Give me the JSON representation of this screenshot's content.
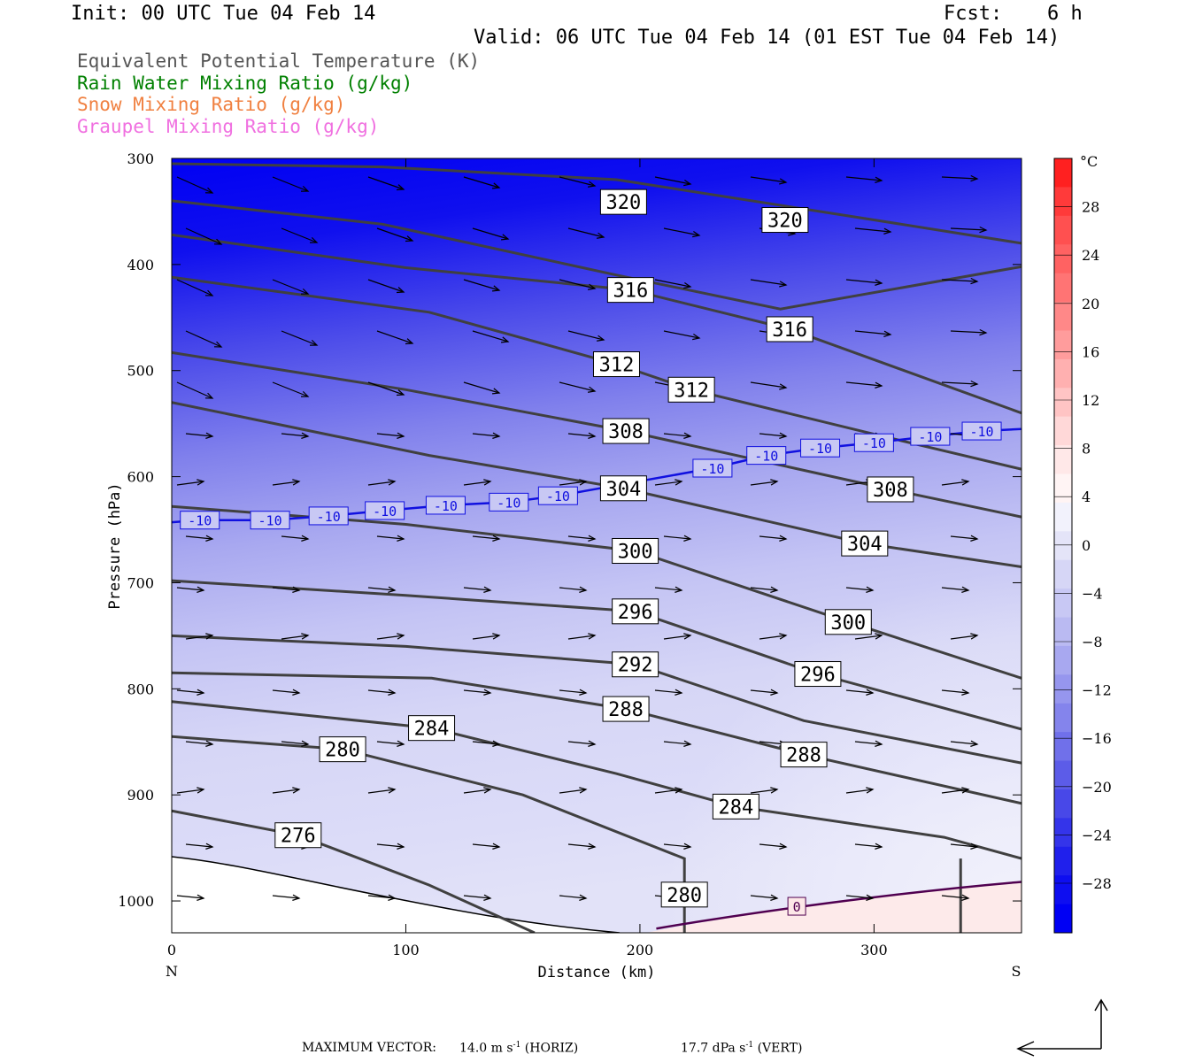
{
  "header": {
    "init": "Init: 00 UTC Tue 04 Feb 14",
    "fcst_label": "Fcst:",
    "fcst_value": "6 h",
    "valid": "Valid: 06 UTC Tue 04 Feb 14 (01 EST Tue 04 Feb 14)"
  },
  "legend": [
    {
      "label": "Equivalent Potential Temperature (K)",
      "color": "#555555"
    },
    {
      "label": "Rain Water Mixing Ratio (g/kg)",
      "color": "#008000"
    },
    {
      "label": "Snow Mixing Ratio (g/kg)",
      "color": "#f08040"
    },
    {
      "label": "Graupel Mixing Ratio (g/kg)",
      "color": "#f070e0"
    }
  ],
  "footer": {
    "max_vector_label": "MAXIMUM VECTOR:",
    "horiz": "14.0 m s",
    "horiz_tag": "(HORIZ)",
    "vert": "17.7 dPa s",
    "vert_tag": "(VERT)",
    "exp": "-1"
  },
  "chart_data": {
    "type": "contour-cross-section",
    "xlabel": "Distance (km)",
    "ylabel": "Pressure (hPa)",
    "xlim": [
      0,
      363
    ],
    "ylim": [
      1030,
      300
    ],
    "x_ticks": [
      0,
      100,
      200,
      300
    ],
    "y_ticks": [
      300,
      400,
      500,
      600,
      700,
      800,
      900,
      1000
    ],
    "x_end_labels": {
      "left": "N",
      "right": "S"
    },
    "colorbar": {
      "unit": "°C",
      "labels": [
        28,
        24,
        20,
        16,
        12,
        8,
        4,
        0,
        -4,
        -8,
        -12,
        -16,
        -20,
        -24,
        -28
      ],
      "colors_warm": [
        "#ff2020",
        "#ff3a3a",
        "#ff5050",
        "#ff6262",
        "#ff7474",
        "#ff8888",
        "#ff9c9c",
        "#ffb0b0",
        "#ffc4c4",
        "#ffd8d8",
        "#ffe8e8",
        "#fff4f4"
      ],
      "colors_cold": [
        "#f2f2fc",
        "#e4e4f8",
        "#d6d6f6",
        "#c8c8f4",
        "#babaf2",
        "#a8a8f0",
        "#9696ee",
        "#8484ec",
        "#7070ea",
        "#5c5ce8",
        "#4848e8",
        "#3434ea",
        "#2020ec",
        "#0e0ef0",
        "#0000f4"
      ]
    },
    "theta_e_labels": [
      {
        "v": "320",
        "x": 193,
        "p": 341
      },
      {
        "v": "320",
        "x": 262,
        "p": 358
      },
      {
        "v": "316",
        "x": 196,
        "p": 424
      },
      {
        "v": "316",
        "x": 264,
        "p": 461
      },
      {
        "v": "312",
        "x": 190,
        "p": 494
      },
      {
        "v": "312",
        "x": 222,
        "p": 518
      },
      {
        "v": "308",
        "x": 194,
        "p": 557
      },
      {
        "v": "308",
        "x": 307,
        "p": 612
      },
      {
        "v": "304",
        "x": 193,
        "p": 611
      },
      {
        "v": "304",
        "x": 296,
        "p": 663
      },
      {
        "v": "300",
        "x": 198,
        "p": 670
      },
      {
        "v": "300",
        "x": 289,
        "p": 737
      },
      {
        "v": "296",
        "x": 198,
        "p": 727
      },
      {
        "v": "296",
        "x": 276,
        "p": 786
      },
      {
        "v": "292",
        "x": 198,
        "p": 777
      },
      {
        "v": "288",
        "x": 194,
        "p": 819
      },
      {
        "v": "288",
        "x": 270,
        "p": 862
      },
      {
        "v": "284",
        "x": 111,
        "p": 837
      },
      {
        "v": "284",
        "x": 241,
        "p": 911
      },
      {
        "v": "280",
        "x": 73,
        "p": 857
      },
      {
        "v": "280",
        "x": 219,
        "p": 994
      },
      {
        "v": "276",
        "x": 54,
        "p": 938
      }
    ],
    "isotherm_labels": [
      {
        "v": "-10",
        "x": 12,
        "p": 641
      },
      {
        "v": "-10",
        "x": 42,
        "p": 641
      },
      {
        "v": "-10",
        "x": 67,
        "p": 637
      },
      {
        "v": "-10",
        "x": 91,
        "p": 632
      },
      {
        "v": "-10",
        "x": 117,
        "p": 627
      },
      {
        "v": "-10",
        "x": 144,
        "p": 624
      },
      {
        "v": "-10",
        "x": 165,
        "p": 618
      },
      {
        "v": "-10",
        "x": 231,
        "p": 592
      },
      {
        "v": "-10",
        "x": 254,
        "p": 580
      },
      {
        "v": "-10",
        "x": 277,
        "p": 573
      },
      {
        "v": "-10",
        "x": 300,
        "p": 568
      },
      {
        "v": "-10",
        "x": 324,
        "p": 562
      },
      {
        "v": "-10",
        "x": 346,
        "p": 557
      },
      {
        "v": "0",
        "x": 267,
        "p": 1005
      }
    ]
  }
}
